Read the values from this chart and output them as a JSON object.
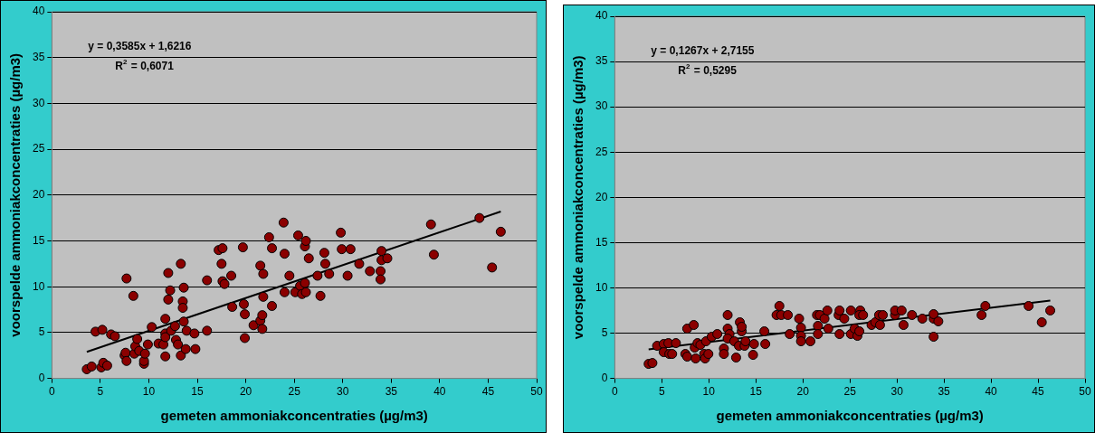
{
  "chart_data": [
    {
      "type": "scatter",
      "xlabel": "gemeten ammoniakconcentraties (µg/m3)",
      "ylabel": "voorspelde ammoniakconcentraties (µg/m3)",
      "annotations": [
        "y = 0,3585x + 1,6216",
        "R$^{2}$ = 0,6071"
      ],
      "xlim": [
        0,
        50
      ],
      "xticks": [
        0,
        5,
        10,
        15,
        20,
        25,
        30,
        35,
        40,
        45,
        50
      ],
      "ylim": [
        0,
        40
      ],
      "yticks": [
        0,
        5,
        10,
        15,
        20,
        25,
        30,
        35,
        40
      ],
      "grid": "y",
      "legend": false,
      "marker": "circle",
      "series": [
        {
          "type": "scatter",
          "color": "#8b0000",
          "x": [
            3.6,
            4.1,
            4.5,
            5.1,
            5.2,
            5.3,
            5.7,
            6.1,
            6.5,
            7.5,
            7.6,
            7.7,
            7.7,
            8.4,
            8.5,
            8.6,
            8.8,
            9.0,
            9.5,
            9.5,
            9.6,
            9.9,
            10.3,
            11.0,
            11.5,
            11.7,
            11.7,
            11.7,
            11.7,
            12.0,
            12.0,
            12.2,
            12.3,
            12.7,
            12.8,
            13.0,
            13.3,
            13.3,
            13.5,
            13.5,
            13.6,
            13.6,
            13.8,
            13.9,
            14.7,
            14.8,
            16.0,
            16.0,
            17.2,
            17.6,
            17.5,
            17.6,
            17.8,
            18.5,
            18.6,
            19.7,
            19.8,
            19.9,
            19.9,
            20.8,
            21.5,
            21.5,
            21.7,
            21.7,
            21.8,
            21.8,
            22.4,
            22.7,
            22.7,
            23.9,
            24.0,
            24.0,
            24.5,
            25.1,
            25.4,
            25.6,
            25.8,
            26.1,
            26.2,
            26.1,
            26.2,
            26.5,
            27.4,
            27.7,
            28.1,
            28.2,
            28.6,
            29.8,
            29.9,
            30.5,
            30.8,
            31.7,
            32.8,
            33.9,
            33.9,
            34.0,
            34.0,
            34.6,
            39.1,
            39.4,
            44.1,
            45.4,
            46.3
          ],
          "values": [
            1.0,
            1.3,
            5.1,
            1.2,
            5.3,
            1.7,
            1.4,
            4.8,
            4.6,
            2.5,
            2.8,
            1.9,
            10.9,
            9.0,
            2.7,
            3.5,
            4.3,
            3.0,
            1.6,
            1.9,
            2.7,
            3.7,
            5.6,
            3.8,
            3.7,
            6.5,
            4.9,
            4.5,
            2.4,
            8.6,
            11.5,
            9.6,
            5.2,
            5.7,
            4.2,
            3.7,
            2.5,
            12.5,
            8.4,
            7.7,
            6.2,
            9.9,
            3.2,
            5.2,
            4.9,
            3.2,
            10.7,
            5.2,
            14.0,
            14.2,
            12.5,
            10.6,
            10.3,
            11.2,
            7.8,
            14.3,
            8.1,
            7.0,
            4.4,
            5.8,
            12.3,
            6.3,
            6.9,
            5.4,
            11.4,
            8.9,
            15.4,
            14.2,
            7.9,
            17.0,
            13.6,
            9.4,
            11.2,
            9.4,
            15.6,
            10.1,
            9.2,
            10.4,
            9.4,
            14.4,
            15.0,
            13.1,
            11.2,
            9.0,
            13.7,
            12.5,
            11.4,
            15.9,
            14.1,
            11.2,
            14.1,
            12.5,
            11.7,
            11.7,
            10.8,
            13.9,
            12.9,
            13.1,
            16.8,
            13.5,
            17.5,
            12.1,
            16.0
          ]
        },
        {
          "type": "line",
          "color": "#000000",
          "marker": "none",
          "x": [
            3.6,
            46.3
          ],
          "values": [
            2.9,
            18.2
          ]
        }
      ]
    },
    {
      "type": "scatter",
      "xlabel": "gemeten ammoniakconcentraties (µg/m3)",
      "ylabel": "voorspelde ammoniakconcentraties (µg/m3)",
      "annotations": [
        "y = 0,1267x + 2,7155",
        "R$^{2}$ = 0,5295"
      ],
      "xlim": [
        0,
        50
      ],
      "xticks": [
        0,
        5,
        10,
        15,
        20,
        25,
        30,
        35,
        40,
        45,
        50
      ],
      "ylim": [
        0,
        40
      ],
      "yticks": [
        0,
        5,
        10,
        15,
        20,
        25,
        30,
        35,
        40
      ],
      "grid": "y",
      "legend": false,
      "marker": "circle",
      "series": [
        {
          "type": "scatter",
          "color": "#8b0000",
          "x": [
            3.6,
            4.0,
            4.5,
            5.2,
            5.2,
            5.7,
            5.8,
            6.1,
            6.5,
            7.5,
            7.7,
            7.7,
            8.4,
            8.5,
            8.6,
            8.8,
            9.1,
            9.5,
            9.6,
            9.95,
            9.7,
            10.3,
            10.9,
            11.6,
            11.6,
            12.0,
            12.0,
            12.2,
            12.0,
            12.7,
            12.9,
            13.2,
            13.3,
            13.5,
            13.5,
            13.8,
            13.9,
            14.7,
            14.8,
            15.9,
            16.0,
            17.2,
            17.5,
            17.7,
            18.4,
            18.6,
            19.6,
            19.8,
            19.8,
            19.8,
            20.8,
            21.5,
            21.8,
            21.6,
            21.6,
            22.3,
            22.6,
            22.7,
            23.8,
            23.9,
            23.9,
            24.4,
            25.1,
            25.1,
            25.5,
            25.8,
            26.0,
            26.1,
            26.0,
            26.4,
            27.3,
            27.7,
            28.2,
            28.1,
            28.5,
            29.8,
            29.8,
            30.5,
            30.7,
            31.6,
            32.7,
            33.9,
            33.9,
            33.9,
            34.4,
            39.0,
            39.4,
            44.0,
            45.4,
            46.3
          ],
          "values": [
            1.6,
            1.7,
            3.6,
            3.8,
            2.9,
            3.9,
            2.7,
            2.7,
            3.9,
            2.7,
            5.5,
            2.4,
            5.9,
            3.4,
            2.2,
            3.9,
            3.7,
            2.7,
            2.2,
            2.7,
            4.1,
            4.6,
            4.9,
            3.3,
            2.7,
            7.0,
            5.5,
            4.9,
            4.4,
            4.1,
            2.3,
            3.6,
            6.2,
            5.2,
            5.7,
            3.6,
            4.1,
            2.6,
            3.8,
            5.2,
            3.8,
            7.0,
            8.0,
            7.0,
            7.0,
            4.9,
            6.6,
            5.6,
            4.7,
            4.1,
            4.1,
            7.0,
            7.0,
            5.8,
            4.9,
            6.6,
            7.5,
            5.5,
            7.0,
            7.5,
            4.9,
            6.6,
            7.5,
            4.9,
            5.5,
            4.7,
            5.2,
            7.5,
            7.0,
            7.0,
            5.9,
            6.2,
            5.9,
            7.0,
            7.0,
            7.0,
            7.5,
            7.5,
            5.9,
            7.0,
            6.6,
            4.6,
            6.6,
            7.1,
            6.3,
            7.0,
            8.0,
            8.0,
            6.2,
            7.5
          ]
        },
        {
          "type": "line",
          "color": "#000000",
          "marker": "none",
          "x": [
            3.6,
            46.3
          ],
          "values": [
            3.2,
            8.6
          ]
        }
      ]
    }
  ]
}
